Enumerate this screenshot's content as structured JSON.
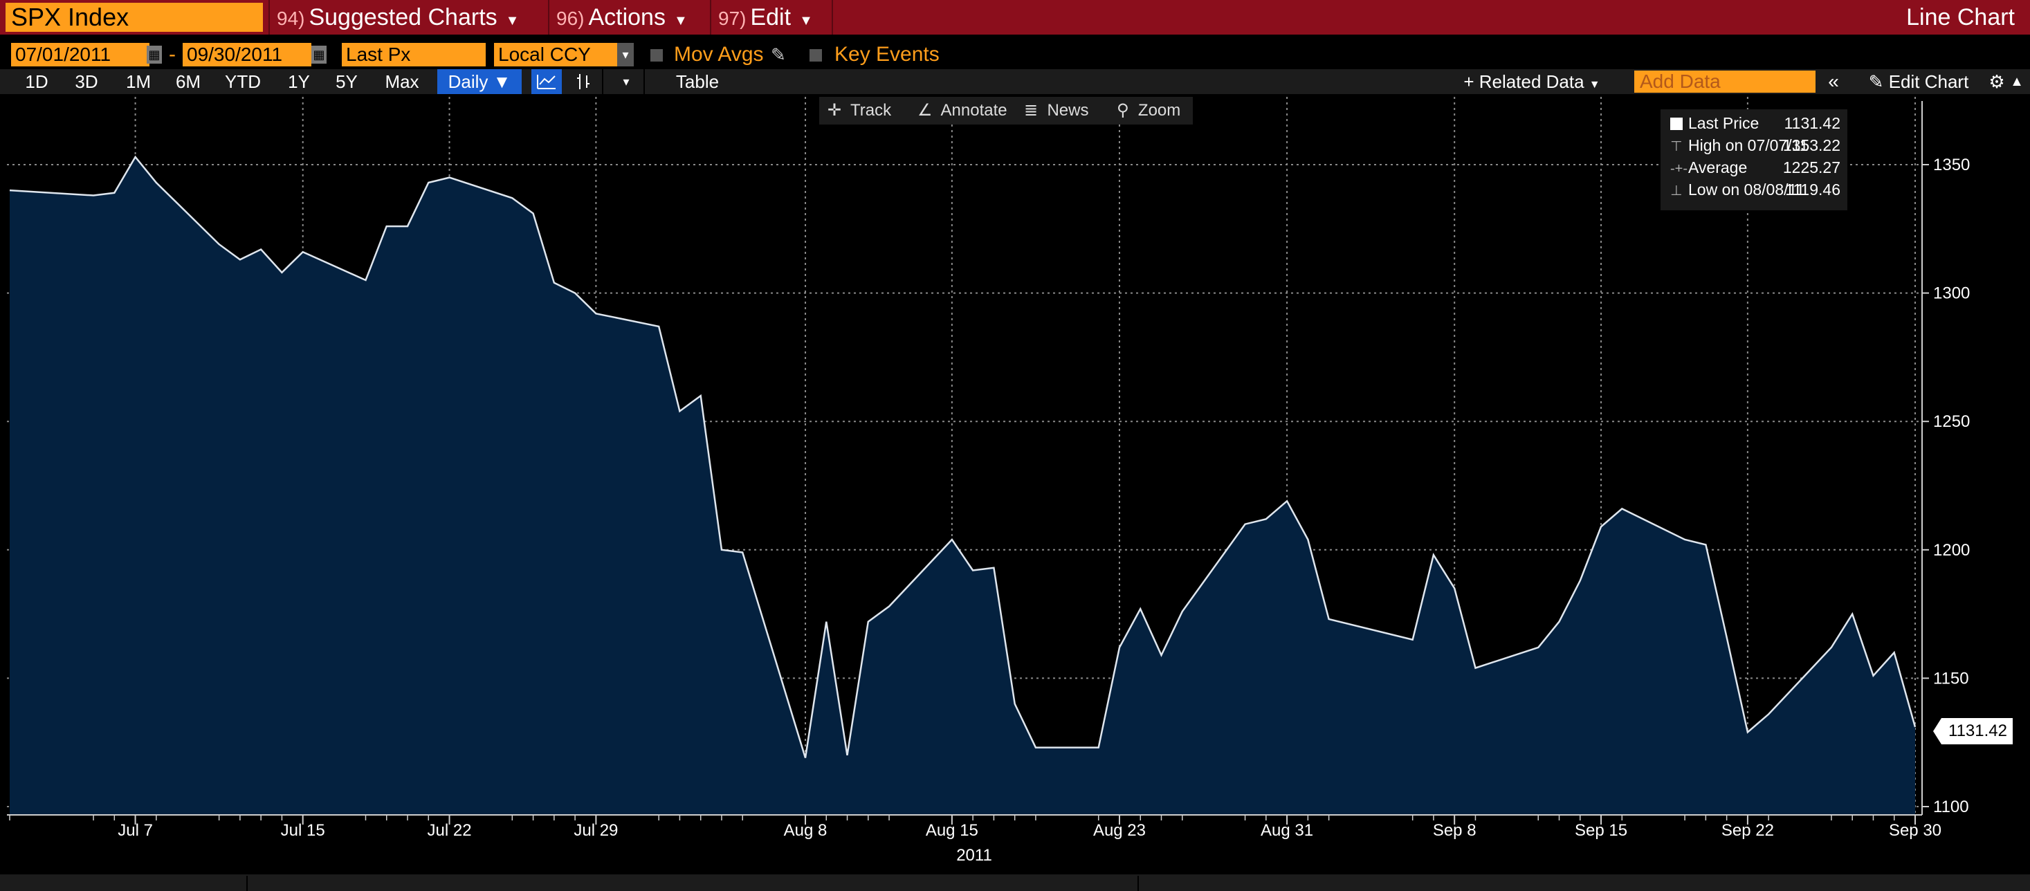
{
  "header": {
    "ticker": "SPX Index",
    "menus": [
      {
        "num": "94)",
        "label": "Suggested Charts"
      },
      {
        "num": "96)",
        "label": "Actions"
      },
      {
        "num": "97)",
        "label": "Edit"
      }
    ],
    "chart_kind": "Line Chart"
  },
  "params": {
    "start_date": "07/01/2011",
    "end_date": "09/30/2011",
    "dash": "-",
    "field": "Last Px",
    "currency": "Local CCY",
    "mov_avgs": "Mov Avgs",
    "key_events": "Key Events"
  },
  "toolbar": {
    "ranges": [
      "1D",
      "3D",
      "1M",
      "6M",
      "YTD",
      "1Y",
      "5Y",
      "Max"
    ],
    "period": "Daily ▼",
    "table": "Table",
    "related": "+ Related Data",
    "add_data_placeholder": "Add Data",
    "edit_chart": "Edit Chart"
  },
  "chart_tools": [
    "Track",
    "Annotate",
    "News",
    "Zoom"
  ],
  "legend": {
    "rows": [
      {
        "label": "Last Price",
        "value": "1131.42"
      },
      {
        "label": "High on 07/07/11",
        "value": "1353.22"
      },
      {
        "label": "Average",
        "value": "1225.27"
      },
      {
        "label": "Low on 08/08/11",
        "value": "1119.46"
      }
    ]
  },
  "last_tag": "1131.42",
  "colors": {
    "title_bar": "#8b0e1c",
    "accent_orange": "#ff9e1b",
    "area_fill": "#04213f",
    "line": "#dfe6ee"
  },
  "chart_data": {
    "type": "area",
    "title": "",
    "xlabel": "2011",
    "ylabel": "",
    "ylim": [
      1100,
      1370
    ],
    "yticks": [
      1100,
      1150,
      1200,
      1250,
      1300,
      1350
    ],
    "xtick_labels": [
      {
        "label": "Jul 7",
        "date": "2011-07-07"
      },
      {
        "label": "Jul 15",
        "date": "2011-07-15"
      },
      {
        "label": "Jul 22",
        "date": "2011-07-22"
      },
      {
        "label": "Jul 29",
        "date": "2011-07-29"
      },
      {
        "label": "Aug 8",
        "date": "2011-08-08"
      },
      {
        "label": "Aug 15",
        "date": "2011-08-15"
      },
      {
        "label": "Aug 23",
        "date": "2011-08-23"
      },
      {
        "label": "Aug 31",
        "date": "2011-08-31"
      },
      {
        "label": "Sep 8",
        "date": "2011-09-08"
      },
      {
        "label": "Sep 15",
        "date": "2011-09-15"
      },
      {
        "label": "Sep 22",
        "date": "2011-09-22"
      },
      {
        "label": "Sep 30",
        "date": "2011-09-30"
      }
    ],
    "grid": true,
    "series": [
      {
        "name": "Last Price",
        "x": [
          "2011-07-01",
          "2011-07-05",
          "2011-07-06",
          "2011-07-07",
          "2011-07-08",
          "2011-07-11",
          "2011-07-12",
          "2011-07-13",
          "2011-07-14",
          "2011-07-15",
          "2011-07-18",
          "2011-07-19",
          "2011-07-20",
          "2011-07-21",
          "2011-07-22",
          "2011-07-25",
          "2011-07-26",
          "2011-07-27",
          "2011-07-28",
          "2011-07-29",
          "2011-08-01",
          "2011-08-02",
          "2011-08-03",
          "2011-08-04",
          "2011-08-05",
          "2011-08-08",
          "2011-08-09",
          "2011-08-10",
          "2011-08-11",
          "2011-08-12",
          "2011-08-15",
          "2011-08-16",
          "2011-08-17",
          "2011-08-18",
          "2011-08-19",
          "2011-08-22",
          "2011-08-23",
          "2011-08-24",
          "2011-08-25",
          "2011-08-26",
          "2011-08-29",
          "2011-08-30",
          "2011-08-31",
          "2011-09-01",
          "2011-09-02",
          "2011-09-06",
          "2011-09-07",
          "2011-09-08",
          "2011-09-09",
          "2011-09-12",
          "2011-09-13",
          "2011-09-14",
          "2011-09-15",
          "2011-09-16",
          "2011-09-19",
          "2011-09-20",
          "2011-09-21",
          "2011-09-22",
          "2011-09-23",
          "2011-09-26",
          "2011-09-27",
          "2011-09-28",
          "2011-09-29",
          "2011-09-30"
        ],
        "values": [
          1340,
          1338,
          1339,
          1353,
          1343,
          1319,
          1313,
          1317,
          1308,
          1316,
          1305,
          1326,
          1326,
          1343,
          1345,
          1337,
          1331,
          1304,
          1300,
          1292,
          1287,
          1254,
          1260,
          1200,
          1199,
          1119,
          1172,
          1120,
          1172,
          1178,
          1204,
          1192,
          1193,
          1140,
          1123,
          1123,
          1162,
          1177,
          1159,
          1176,
          1210,
          1212,
          1219,
          1204,
          1173,
          1165,
          1198,
          1185,
          1154,
          1162,
          1172,
          1188,
          1209,
          1216,
          1204,
          1202,
          1166,
          1129,
          1136,
          1162,
          1175,
          1151,
          1160,
          1131
        ]
      }
    ]
  }
}
